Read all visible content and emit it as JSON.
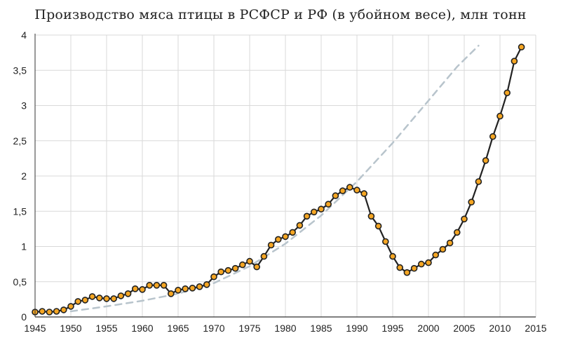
{
  "chart_data": {
    "type": "line",
    "title": "Производство мяса птицы в РСФСР и РФ (в убойном весе), млн тонн",
    "xlabel": "",
    "ylabel": "",
    "xlim": [
      1945,
      2015
    ],
    "ylim": [
      0,
      4
    ],
    "x_ticks": [
      1945,
      1950,
      1955,
      1960,
      1965,
      1970,
      1975,
      1980,
      1985,
      1990,
      1995,
      2000,
      2005,
      2010,
      2015
    ],
    "y_ticks": [
      {
        "value": 0,
        "label": "0"
      },
      {
        "value": 0.5,
        "label": "0,5"
      },
      {
        "value": 1,
        "label": "1"
      },
      {
        "value": 1.5,
        "label": "1,5"
      },
      {
        "value": 2,
        "label": "2"
      },
      {
        "value": 2.5,
        "label": "2,5"
      },
      {
        "value": 3,
        "label": "3"
      },
      {
        "value": 3.5,
        "label": "3,5"
      },
      {
        "value": 4,
        "label": "4"
      }
    ],
    "grid": true,
    "legend": false,
    "colors": {
      "line": "#222222",
      "marker_fill": "#f5a623",
      "marker_stroke": "#222222",
      "trend": "#b8c4cc",
      "grid": "#d9d9d9",
      "background": "#ffffff"
    },
    "series": [
      {
        "x": [
          1945,
          1946,
          1947,
          1948,
          1949,
          1950,
          1951,
          1952,
          1953,
          1954,
          1955,
          1956,
          1957,
          1958,
          1959,
          1960,
          1961,
          1962,
          1963,
          1964,
          1965,
          1966,
          1967,
          1968,
          1969,
          1970,
          1971,
          1972,
          1973,
          1974,
          1975,
          1976,
          1977,
          1978,
          1979,
          1980,
          1981,
          1982,
          1983,
          1984,
          1985,
          1986,
          1987,
          1988,
          1989,
          1990,
          1991,
          1992,
          1993,
          1994,
          1995,
          1996,
          1997,
          1998,
          1999,
          2000,
          2001,
          2002,
          2003,
          2004,
          2005,
          2006,
          2007,
          2008,
          2009,
          2010,
          2011,
          2012,
          2013
        ],
        "values": [
          0.07,
          0.08,
          0.07,
          0.08,
          0.1,
          0.15,
          0.22,
          0.24,
          0.29,
          0.27,
          0.26,
          0.26,
          0.3,
          0.33,
          0.4,
          0.39,
          0.45,
          0.45,
          0.45,
          0.33,
          0.38,
          0.4,
          0.41,
          0.43,
          0.46,
          0.57,
          0.64,
          0.66,
          0.69,
          0.74,
          0.79,
          0.71,
          0.86,
          1.02,
          1.1,
          1.14,
          1.2,
          1.3,
          1.43,
          1.49,
          1.53,
          1.6,
          1.72,
          1.79,
          1.84,
          1.8,
          1.75,
          1.43,
          1.29,
          1.07,
          0.86,
          0.7,
          0.63,
          0.69,
          0.75,
          0.77,
          0.88,
          0.96,
          1.05,
          1.2,
          1.39,
          1.63,
          1.92,
          2.22,
          2.56,
          2.85,
          3.18,
          3.63,
          3.83
        ]
      }
    ],
    "trend": {
      "style": "dashed",
      "x": [
        1950,
        1955,
        1960,
        1965,
        1970,
        1975,
        1980,
        1985,
        1990,
        1995,
        2000,
        2004,
        2007
      ],
      "values": [
        0.08,
        0.15,
        0.23,
        0.33,
        0.48,
        0.72,
        1.04,
        1.44,
        1.92,
        2.47,
        3.07,
        3.55,
        3.85
      ]
    }
  }
}
